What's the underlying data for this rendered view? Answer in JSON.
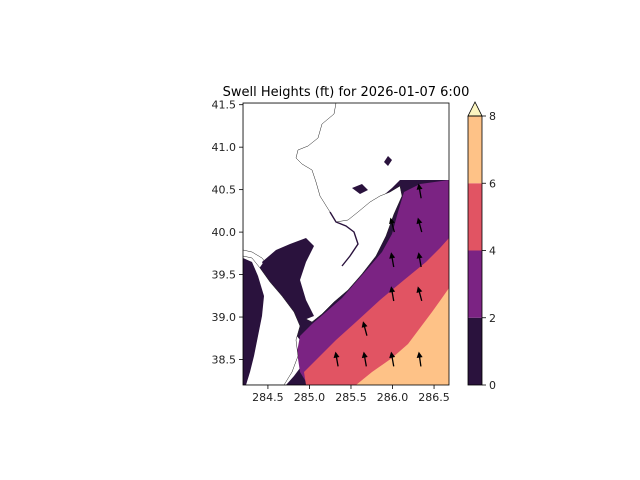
{
  "title": "Swell Heights (ft) for 2026-01-07 6:00",
  "chart_data": {
    "type": "heatmap",
    "title": "Swell Heights (ft) for 2026-01-07 6:00",
    "xlabel": "",
    "ylabel": "",
    "xlim": [
      284.2,
      286.68
    ],
    "ylim": [
      38.2,
      41.52
    ],
    "x_ticks": [
      284.5,
      285.0,
      285.5,
      286.0,
      286.5
    ],
    "x_tick_labels": [
      "284.5",
      "285.0",
      "285.5",
      "286.0",
      "286.5"
    ],
    "y_ticks": [
      38.5,
      39.0,
      39.5,
      40.0,
      40.5,
      41.0,
      41.5
    ],
    "y_tick_labels": [
      "38.5",
      "39.0",
      "39.5",
      "40.0",
      "40.5",
      "41.0",
      "41.5"
    ],
    "colorbar": {
      "levels": [
        0,
        2,
        4,
        6,
        8
      ],
      "tick_labels": [
        "0",
        "2",
        "4",
        "6",
        "8"
      ],
      "colors": [
        "#2a123d",
        "#7b2383",
        "#e15463",
        "#fec287"
      ],
      "extend": "max",
      "extend_color": "#fbf4c0"
    },
    "arrows": [
      {
        "lon": 286.33,
        "lat": 40.48,
        "dir": -10
      },
      {
        "lon": 286.0,
        "lat": 40.08,
        "dir": -15
      },
      {
        "lon": 286.33,
        "lat": 40.08,
        "dir": -15
      },
      {
        "lon": 286.0,
        "lat": 39.67,
        "dir": -10
      },
      {
        "lon": 286.33,
        "lat": 39.67,
        "dir": -10
      },
      {
        "lon": 286.0,
        "lat": 39.27,
        "dir": -10
      },
      {
        "lon": 286.33,
        "lat": 39.27,
        "dir": -15
      },
      {
        "lon": 285.67,
        "lat": 38.86,
        "dir": -15
      },
      {
        "lon": 285.67,
        "lat": 38.5,
        "dir": -10
      },
      {
        "lon": 285.33,
        "lat": 38.5,
        "dir": -10
      },
      {
        "lon": 286.0,
        "lat": 38.5,
        "dir": -10
      },
      {
        "lon": 286.33,
        "lat": 38.5,
        "dir": -8
      }
    ]
  }
}
